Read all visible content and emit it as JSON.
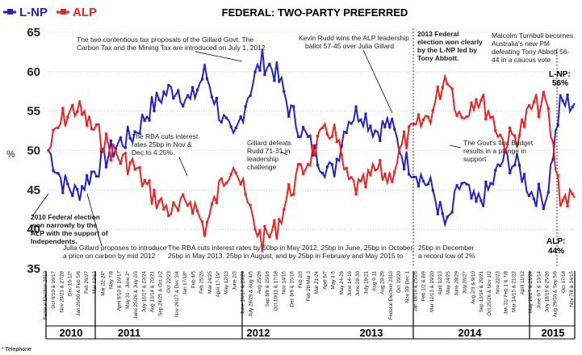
{
  "chart_data": {
    "type": "line",
    "title": "FEDERAL: TWO-PARTY PREFERRED",
    "ylabel": "%",
    "ylim": [
      35,
      65
    ],
    "yticks": [
      35,
      40,
      45,
      50,
      55,
      60,
      65
    ],
    "legend": "top-left",
    "footnote": "* Telephone",
    "colors": {
      "lnp": "#2222cc",
      "alp": "#ee2222"
    },
    "series": [
      {
        "name": "L-NP",
        "end_label": "L-NP:",
        "end_value": "56%",
        "key_values": [
          50,
          46,
          44.5,
          47,
          49,
          51,
          52,
          55,
          57,
          58,
          56,
          60,
          55,
          51,
          57,
          61.5,
          60,
          55,
          52,
          49,
          47,
          54,
          55,
          52.5,
          53.5,
          49,
          47,
          45,
          40,
          46,
          43,
          45,
          49,
          48,
          44.5,
          44,
          56,
          56
        ]
      },
      {
        "name": "ALP",
        "end_label": "ALP:",
        "end_value": "44%",
        "key_values": [
          50,
          54,
          55.5,
          53,
          51,
          49,
          48,
          45,
          43,
          42,
          44,
          40,
          45,
          49,
          43,
          38.5,
          40,
          45,
          48,
          51,
          53,
          46,
          45,
          47.5,
          46.5,
          51,
          53,
          55,
          60,
          54,
          57,
          55,
          51,
          52,
          55.5,
          56,
          44,
          44
        ]
      }
    ],
    "years": [
      "2010",
      "2011",
      "2012",
      "2013",
      "2014",
      "2015"
    ],
    "xtick_labels": [
      "Federal Election 2010",
      "Oct 9/10 & 16/17",
      "Nov 20/21 & 27/28",
      "Dec 10-12*",
      "Jan 29/30 & Feb 5/6",
      "Feb 26/27",
      "Mar 12/13",
      "Mar 22-24*",
      "May 7/8",
      "April 9/10 & 16/17",
      "May 31 - June 2*",
      "June 25/26 & July 2/3",
      "July 16/17 & 23/24",
      "Aug 13/14 & 20/21",
      "Sep 24/25 & Oct 1/2",
      "Oct 22/23",
      "Nov 26/27 & Dec 3/4",
      "Jan 17/18*",
      "Feb 4/5",
      "Feb 25/26",
      "Mar 24/25",
      "April 17-19*",
      "May 12/13",
      "June 2/3",
      "June 16/17 & 23/24",
      "July 28/29 & Aug 4/5",
      "Aug 25/26",
      "Sep 8/9 & 15/16",
      "Oct 10/11 & 17/18",
      "Nov 14/15",
      "Dec 8/9 & 15/16",
      "Feb 2/3",
      "Feb 28-Mar 3",
      "Mar 21-24",
      "April 6/7",
      "May 3-5",
      "May 24-26",
      "June 14-16",
      "June 28-30",
      "July 19-21",
      "Aug 9-11",
      "Aug 28-29",
      "Federal Election 2013",
      "Oct 19/20",
      "Nov 30/ Dec 1",
      "Jan 18/19 & 25/26",
      "Feb 1/2 & 8/9",
      "Mar 12/13 & 19/20",
      "April 12/13",
      "May 24/25",
      "June 28/29",
      "July 26/27",
      "Aug 2/3 & 9/10",
      "Sep 13/14 & 20/21",
      "Oct 25/26 & Nov 1/2",
      "Nov 22/23",
      "Jan 31/ Feb 1 & 7/8",
      "Mar 14/15 & 21/22",
      "April 11/12",
      "May 16/17 & 23/24",
      "June 6/7 & 13/14",
      "July 18/19 & 25/26",
      "Aug 29/30 & Sep 5/6",
      "Oct 17/18",
      "Nov 7/8 & 14/15"
    ],
    "annotations": [
      "The two contentious tax proposals of the Gillard Govt. The",
      "Carbon Tax and the Mining Tax are introduced on July 1, 2012",
      "Kevin Rudd wins the ALP leadership",
      "ballot 57-45 over Julia Gillard",
      "2013 Federal",
      "election won clearly",
      "by the L-NP led by",
      "Tony Abbott.",
      "Malcolm Turnbull becomes",
      "Australia's new PM",
      "defeating Tony Abbott 56-",
      "44 in a caucus vote",
      "The RBA cuts interest",
      "rates 25bp in Nov &",
      "Dec to 4.25%.",
      "Gillard defeats",
      "Rudd 71-31 in",
      "leadership",
      "challenge",
      "The Govt's first Budget",
      "results in a plunge in",
      "support",
      "2010 Federal election",
      "won narrowly by the",
      "ALP with the support of",
      "Independents.",
      "Julia Gillard proposes to introduce",
      "a price on carbon by mid 2012",
      "The RBA cuts interest rates by 50bp in May 2012, 25bp in June, 25bp in October,",
      "25bp in May 2013, 25bp in August, and by 25bp in February and May 2015 to",
      "25bp in December",
      "a record low of 2%"
    ]
  }
}
